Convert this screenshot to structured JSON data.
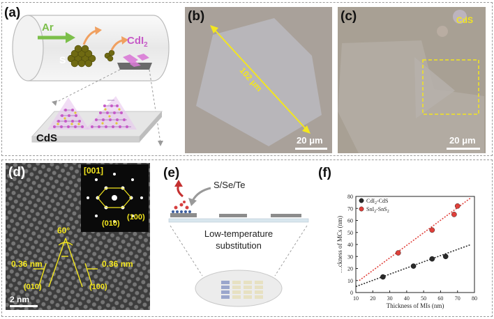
{
  "figure": {
    "panels": {
      "a": {
        "label": "(a)",
        "gas": "Ar",
        "sulfur": "S",
        "precursor": "CdI",
        "precursor_sub": "2",
        "product": "CdS"
      },
      "b": {
        "label": "(b)",
        "measurement": "102 μm",
        "scale_bar": "20 μm"
      },
      "c": {
        "label": "(c)",
        "material": "CdS",
        "scale_bar": "20 μm"
      },
      "d": {
        "label": "(d)",
        "zone_axis": "[001]",
        "saed_spot_1": "(100)",
        "saed_spot_2": "(010)",
        "angle": "60°",
        "spacing_left": "0.36 nm",
        "spacing_right": "0.36 nm",
        "plane_left": "(010)",
        "plane_right": "(100)",
        "scale_bar": "2 nm"
      },
      "e": {
        "label": "(e)",
        "chalcogens": "S/Se/Te",
        "process_line1": "Low-temperature",
        "process_line2": "substitution"
      },
      "f": {
        "label": "(f)"
      }
    }
  },
  "chart_data": {
    "type": "scatter",
    "xlabel": "Thickness of MIs (nm)",
    "ylabel": "…ckness of MCs (nm)",
    "xlim": [
      10,
      80
    ],
    "ylim": [
      0,
      80
    ],
    "xticks": [
      10,
      20,
      30,
      40,
      50,
      60,
      70,
      80
    ],
    "yticks": [
      0,
      10,
      20,
      30,
      40,
      50,
      60,
      70,
      80
    ],
    "legend_position": "top-left",
    "series": [
      {
        "name": "CdI2-CdS",
        "name_main": "CdI",
        "name_sub": "2",
        "name_rest": "-CdS",
        "color": "#2a2a2a",
        "points": [
          [
            26,
            13
          ],
          [
            44,
            22
          ],
          [
            55,
            28
          ],
          [
            63,
            30
          ]
        ],
        "fit": [
          [
            10,
            5
          ],
          [
            78,
            40
          ]
        ]
      },
      {
        "name": "SnI2-SnS2",
        "name_main": "SnI",
        "name_sub": "2",
        "name_rest": "-SnS",
        "name_sub2": "2",
        "color": "#e0403a",
        "points": [
          [
            35,
            33
          ],
          [
            55,
            52
          ],
          [
            68,
            65
          ],
          [
            70,
            72
          ]
        ],
        "fit": [
          [
            12,
            10
          ],
          [
            78,
            79
          ]
        ]
      }
    ]
  }
}
